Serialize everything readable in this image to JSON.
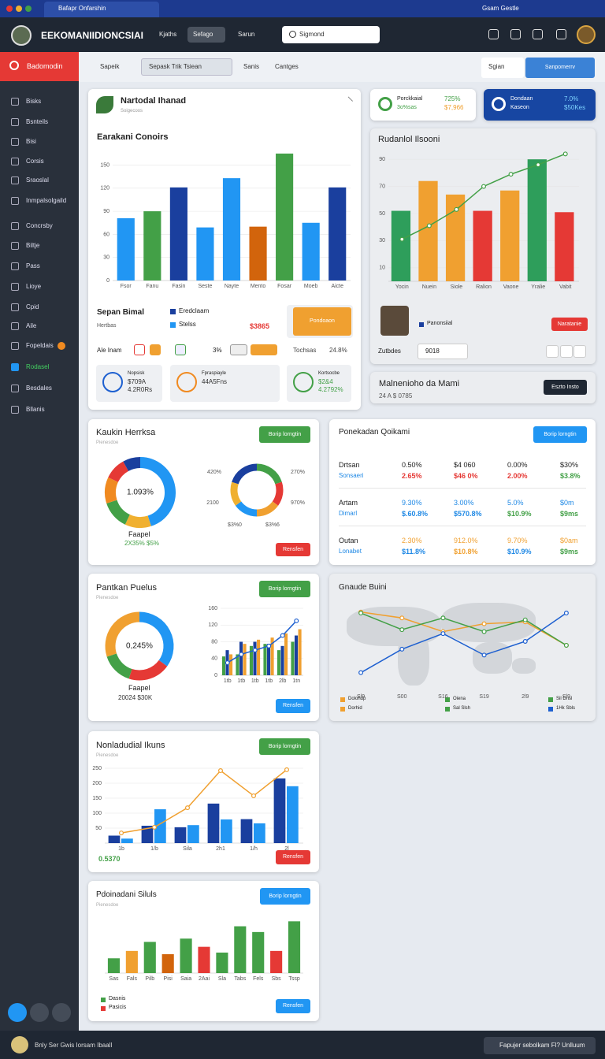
{
  "browser": {
    "tab": "Bafapr Onfarshin",
    "account": "Gsam Gestle"
  },
  "header": {
    "brand": "EEKOMANIIDIONCSIAI",
    "nav": [
      "Kjaths",
      "Sefago",
      "Sarun"
    ],
    "search": "Sigmond"
  },
  "sidebar": {
    "active": "Badomodin",
    "items": [
      "Bisks",
      "Bsnteils",
      "Bisi",
      "Corsis",
      "Sraoslal",
      "Inmpalsolgaild",
      "Concrsby",
      "Biltje",
      "Pass",
      "Lioye",
      "Cpid",
      "Aile",
      "Fopeldais",
      "Rodasel",
      "Besdales",
      "Bllanis"
    ]
  },
  "filters": {
    "label": "Sapeik",
    "dropdown": "Sepask Trik Tsiean",
    "links": [
      "Sanis",
      "Cantges"
    ],
    "select": "Sgian",
    "button": "Sanpomerrv"
  },
  "overview": {
    "title": "Nartodal Ihanad",
    "subtitle": "Soigecoos",
    "chart": {
      "type": "bar",
      "title": "Earakani Conoirs",
      "categories": [
        "Fsor",
        "Fanu",
        "Fasin",
        "Seste",
        "Nayte",
        "Mento",
        "Fosar",
        "Moeb",
        "Aicte"
      ],
      "values": [
        81,
        90,
        121,
        69,
        133,
        70,
        165,
        75,
        121
      ],
      "colors": [
        "#2196f3",
        "#43a047",
        "#1a3f9e",
        "#2196f3",
        "#2196f3",
        "#d2640c",
        "#43a047",
        "#2196f3",
        "#1a3f9e"
      ],
      "ylim": [
        0,
        170
      ],
      "yticks": [
        0,
        30,
        60,
        90,
        120,
        150
      ]
    },
    "summary": {
      "title": "Sepan Bimal",
      "subtitle": "Hertbas",
      "legend": [
        {
          "label": "Eredclaam",
          "color": "#1a3f9e"
        },
        {
          "label": "Stelss",
          "color": "#2196f3"
        }
      ],
      "amount": "$3865",
      "button": "Pondoaon",
      "row": [
        "Ale Inam",
        "3%",
        "Tochsas",
        "24.8%"
      ],
      "tiles": [
        {
          "title": "Nopsisk",
          "lines": [
            "$709A",
            "4.2R0Rs"
          ]
        },
        {
          "title": "Fpraspiayle",
          "lines": [
            "44A5Fns"
          ]
        },
        {
          "title": "Kortsocbe",
          "lines": [
            "$2&4",
            "4.2792%"
          ]
        }
      ]
    }
  },
  "stats": [
    {
      "title": "Porckkaial",
      "value": "725%",
      "sub": "3o%sas",
      "sub_value": "$7,966"
    },
    {
      "title": "Dondaan",
      "value": "7.0%",
      "sub": "Kaseon",
      "sub_value": "$50Kes"
    }
  ],
  "trend": {
    "title": "Rudanlol Ilsooni",
    "chart": {
      "type": "combo",
      "categories": [
        "Yocin",
        "Nuein",
        "Siole",
        "Ralion",
        "Vaone",
        "Yralie",
        "Vabit"
      ],
      "ylim": [
        0,
        100
      ],
      "yticks": [
        10,
        30,
        50,
        70,
        90
      ],
      "series": [
        {
          "type": "bar",
          "colors": [
            "#2e9e5b",
            "#f0a030",
            "#f0a030",
            "#e53935",
            "#f0a030",
            "#2e9e5b",
            "#e53935"
          ],
          "values": [
            52,
            74,
            64,
            52,
            67,
            90,
            51
          ]
        },
        {
          "type": "line",
          "color": "#43a047",
          "values": [
            31,
            41,
            53,
            70,
            79,
            86,
            94
          ]
        }
      ]
    },
    "legend": "Panonsiial",
    "button": "Naratanie",
    "filter_label": "Zutbdes",
    "filter_value": "9018"
  },
  "notice": {
    "title": "Malnenioho da Mami",
    "sub": "24 A $ 0785",
    "button": "Eszto Insto"
  },
  "split": {
    "title": "Kaukin Herrksa",
    "subtitle": "Pienesdoe",
    "button": "Borip lorngtin",
    "button2": "Rensfen",
    "donut1": {
      "type": "donut",
      "values": [
        45,
        12,
        13,
        12,
        10,
        8
      ],
      "colors": [
        "#2196f3",
        "#f0b030",
        "#43a047",
        "#f08a20",
        "#e53935",
        "#1a3f9e"
      ],
      "center": "1.093%",
      "label": "Faapel",
      "sub": "2X35% $5%"
    },
    "donut2": {
      "type": "donut",
      "values": [
        20,
        15,
        15,
        15,
        15,
        20
      ],
      "colors": [
        "#43a047",
        "#e53935",
        "#f0a030",
        "#2196f3",
        "#f0b030",
        "#1a3f9e"
      ],
      "labels": [
        "420%",
        "270%",
        "2100",
        "970%",
        "$3%0",
        "$3%6"
      ]
    }
  },
  "table": {
    "title": "Ponekadan Qoikami",
    "button": "Borip lorngtin",
    "rows": [
      {
        "label": "Drtsan",
        "sub": "Sonsaeri",
        "value_color": "#222",
        "cells": [
          [
            "0.50%",
            "2.65%"
          ],
          [
            "$4 060",
            "$46 0%"
          ],
          [
            "0.00%",
            "2.00%"
          ],
          [
            "$30%",
            "$3.8%"
          ]
        ],
        "sub_colors": [
          "#e53935",
          "#e53935",
          "#e53935",
          "#43a047"
        ]
      },
      {
        "label": "Artam",
        "sub": "Dimarl",
        "value_color": "#1e88e5",
        "cells": [
          [
            "9.30%",
            "$.60.8%"
          ],
          [
            "3.00%",
            "$570.8%"
          ],
          [
            "5.0%",
            "$10.9%"
          ],
          [
            "$0m",
            "$9ms"
          ]
        ],
        "sub_colors": [
          "#1e88e5",
          "#1e88e5",
          "#43a047",
          "#43a047"
        ]
      },
      {
        "label": "Outan",
        "sub": "Lonabet",
        "value_color": "#f0a030",
        "cells": [
          [
            "2.30%",
            "$11.8%"
          ],
          [
            "912.0%",
            "$10.8%"
          ],
          [
            "9.70%",
            "$10.9%"
          ],
          [
            "$0am",
            "$9ms"
          ]
        ],
        "sub_colors": [
          "#1e88e5",
          "#f0a030",
          "#1e88e5",
          "#43a047"
        ]
      }
    ]
  },
  "mix": {
    "title": "Pantkan Puelus",
    "subtitle": "Pienesdoe",
    "button": "Borip lorngtin",
    "button2": "Rensfen",
    "donut": {
      "type": "donut",
      "values": [
        35,
        20,
        15,
        30
      ],
      "colors": [
        "#2196f3",
        "#e53935",
        "#43a047",
        "#f0a030"
      ],
      "center": "0,245%",
      "label": "Faapel",
      "sub": "20024 $30K"
    },
    "chart": {
      "type": "combo",
      "categories": [
        "1tb",
        "1tb",
        "1tb",
        "1tb",
        "2lb",
        "1tn"
      ],
      "ylim": [
        0,
        160
      ],
      "yticks": [
        0,
        40,
        80,
        120,
        160
      ],
      "series": [
        {
          "type": "bar",
          "color": "#43a047",
          "values": [
            45,
            50,
            70,
            75,
            60,
            80
          ]
        },
        {
          "type": "bar",
          "color": "#1a3f9e",
          "values": [
            60,
            80,
            80,
            75,
            70,
            95
          ]
        },
        {
          "type": "bar",
          "color": "#f0a030",
          "values": [
            50,
            75,
            85,
            90,
            100,
            110
          ]
        },
        {
          "type": "line",
          "color": "#1e60d0",
          "values": [
            30,
            50,
            60,
            70,
            95,
            130
          ]
        }
      ]
    }
  },
  "map": {
    "title": "Gnaude Buini",
    "chart": {
      "type": "line",
      "categories": [
        "Sl9",
        "S00",
        "S16",
        "S19",
        "2l9",
        "Sl9"
      ],
      "ylim": [
        0,
        100
      ],
      "series": [
        {
          "color": "#f0a030",
          "values": [
            80,
            74,
            60,
            68,
            70,
            46
          ]
        },
        {
          "color": "#43a047",
          "values": [
            79,
            62,
            74,
            60,
            72,
            46
          ]
        },
        {
          "color": "#1e60d0",
          "values": [
            18,
            42,
            58,
            36,
            50,
            79
          ]
        }
      ]
    },
    "legend": [
      {
        "label": "Dolohdp",
        "color": "#f0a030"
      },
      {
        "label": "Dorhid",
        "color": "#f0a030"
      },
      {
        "label": "Oiena",
        "color": "#43a047"
      },
      {
        "label": "Sal Slsh",
        "color": "#43a047"
      },
      {
        "label": "Sil Dnsl",
        "color": "#43a047"
      },
      {
        "label": "1Hk Sbls",
        "color": "#1e60d0"
      }
    ]
  },
  "volume": {
    "title": "Nonladudial Ikuns",
    "subtitle": "Pienesdoe",
    "button": "Borip lorngtin",
    "button2": "Rensfen",
    "note": "0.5370",
    "chart": {
      "type": "combo",
      "categories": [
        "1b",
        "1/b",
        "Sila",
        "2h1",
        "1/h",
        "2l"
      ],
      "ylim": [
        0,
        250
      ],
      "yticks": [
        50,
        100,
        150,
        200,
        250
      ],
      "series": [
        {
          "type": "bar",
          "color": "#1a3f9e",
          "values": [
            25,
            58,
            53,
            132,
            80,
            216
          ]
        },
        {
          "type": "bar",
          "color": "#2196f3",
          "values": [
            15,
            113,
            60,
            79,
            66,
            190
          ]
        },
        {
          "type": "line",
          "color": "#f0a030",
          "values": [
            34,
            53,
            118,
            242,
            158,
            245
          ]
        }
      ]
    }
  },
  "sales": {
    "title": "Pdoinadani Siluls",
    "subtitle": "Pienesdoe",
    "button": "Borip lorngtin",
    "button2": "Rensfen",
    "chart": {
      "type": "bar",
      "categories": [
        "Sas",
        "Fals",
        "Pilb",
        "Pisi",
        "Saia",
        "2Aai",
        "Sla",
        "Tabs",
        "Fels",
        "Sbs",
        "Tssp"
      ],
      "values": [
        18,
        27,
        38,
        23,
        42,
        32,
        25,
        57,
        50,
        27,
        63
      ],
      "colors": [
        "#43a047",
        "#f0a030",
        "#43a047",
        "#d2640c",
        "#43a047",
        "#e53935",
        "#43a047",
        "#43a047",
        "#43a047",
        "#e53935",
        "#43a047"
      ],
      "ylim": [
        0,
        70
      ]
    },
    "legend": [
      {
        "label": "Dasnis",
        "color": "#43a047"
      },
      {
        "label": "Pasicis",
        "color": "#e53935"
      }
    ]
  },
  "footer": {
    "left": "Bnly Ser Gwis Iorsam Ibaall",
    "right": "Fapujer sebolkam Fl? Unlluum"
  }
}
